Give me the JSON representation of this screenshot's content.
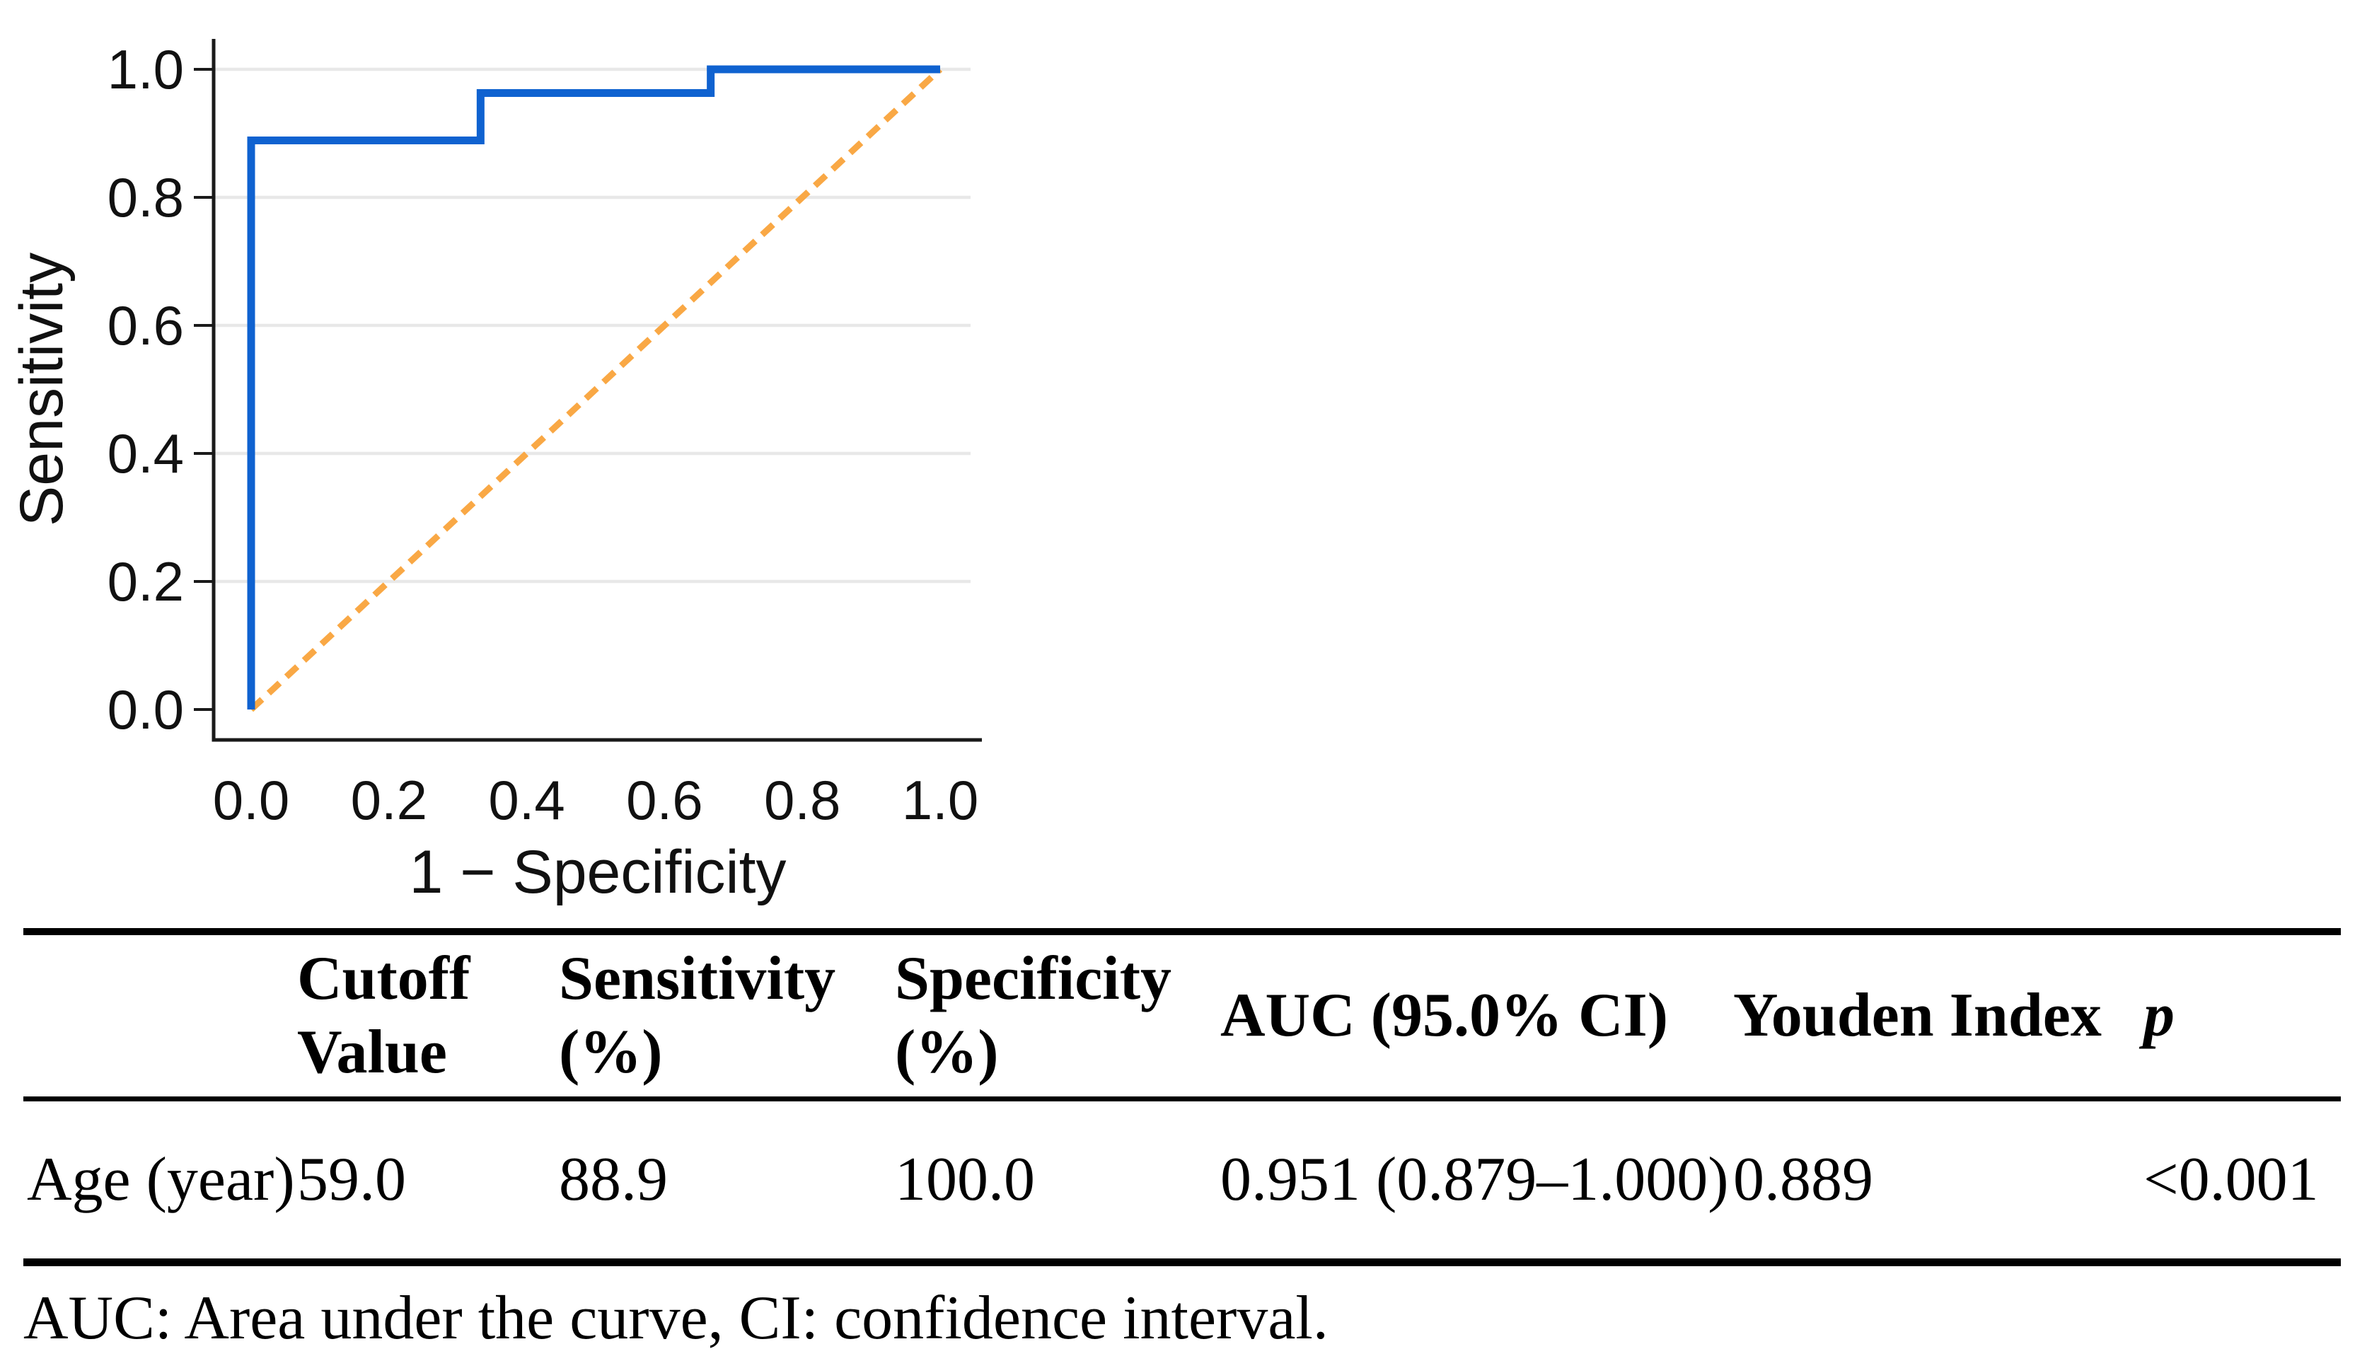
{
  "chart_data": {
    "type": "line",
    "subtype": "roc-curve",
    "title": "",
    "xlabel": "1 − Specificity",
    "ylabel": "Sensitivity",
    "xlim": [
      0.0,
      1.0
    ],
    "ylim": [
      0.0,
      1.0
    ],
    "xticks": [
      0.0,
      0.2,
      0.4,
      0.6,
      0.8,
      1.0
    ],
    "yticks": [
      0.0,
      0.2,
      0.4,
      0.6,
      0.8,
      1.0
    ],
    "grid": "horizontal-only",
    "grid_color": "#e8e8e8",
    "axis_color": "#1a1a1a",
    "legend_position": "none",
    "series": [
      {
        "name": "ROC curve (Age)",
        "style": "solid",
        "color": "#0f62d0",
        "points": [
          [
            0.0,
            0.0
          ],
          [
            0.0,
            0.889
          ],
          [
            0.333,
            0.889
          ],
          [
            0.333,
            0.963
          ],
          [
            0.667,
            0.963
          ],
          [
            0.667,
            1.0
          ],
          [
            1.0,
            1.0
          ]
        ]
      },
      {
        "name": "Reference line",
        "style": "dashed",
        "color": "#f9a845",
        "points": [
          [
            0.0,
            0.0
          ],
          [
            1.0,
            1.0
          ]
        ]
      }
    ]
  },
  "table": {
    "headers": [
      "",
      "Cutoff Value",
      "Sensitivity (%)",
      "Specificity (%)",
      "AUC (95.0% CI)",
      "Youden Index",
      "p"
    ],
    "rows": [
      {
        "label": "Age (year)",
        "values": [
          "59.0",
          "88.9",
          "100.0",
          "0.951 (0.879–1.000)",
          "0.889",
          "<0.001"
        ]
      }
    ]
  },
  "footnote": "AUC: Area under the curve, CI: confidence interval."
}
